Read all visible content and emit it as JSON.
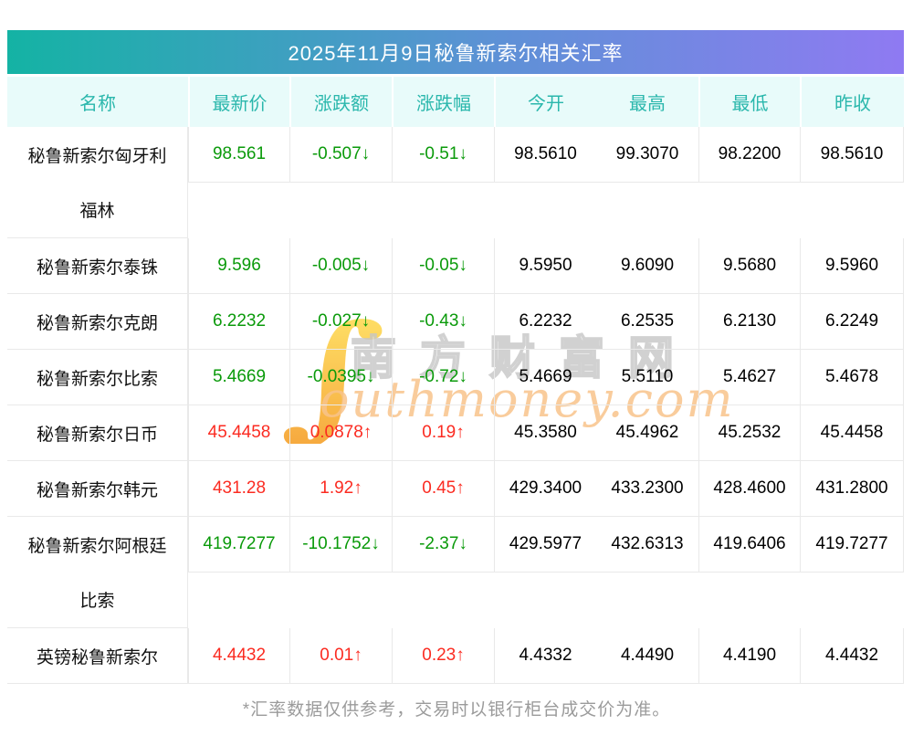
{
  "page_title_bar": {
    "title": "2025年11月9日秘鲁新索尔相关汇率"
  },
  "table": {
    "columns": [
      "名称",
      "最新价",
      "涨跌额",
      "涨跌幅",
      "今开",
      "最高",
      "最低",
      "昨收"
    ],
    "rows": [
      {
        "name": "秘鲁新索尔匈牙利福林",
        "name_lines": [
          "秘鲁新索尔匈牙利",
          "福林"
        ],
        "latest": "98.561",
        "change": "-0.507↓",
        "change_pct": "-0.51↓",
        "open": "98.5610",
        "high": "99.3070",
        "low": "98.2200",
        "prev_close": "98.5610",
        "trend": "down"
      },
      {
        "name": "秘鲁新索尔泰铢",
        "latest": "9.596",
        "change": "-0.005↓",
        "change_pct": "-0.05↓",
        "open": "9.5950",
        "high": "9.6090",
        "low": "9.5680",
        "prev_close": "9.5960",
        "trend": "down"
      },
      {
        "name": "秘鲁新索尔克朗",
        "latest": "6.2232",
        "change": "-0.027↓",
        "change_pct": "-0.43↓",
        "open": "6.2232",
        "high": "6.2535",
        "low": "6.2130",
        "prev_close": "6.2249",
        "trend": "down"
      },
      {
        "name": "秘鲁新索尔比索",
        "latest": "5.4669",
        "change": "-0.0395↓",
        "change_pct": "-0.72↓",
        "open": "5.4669",
        "high": "5.5110",
        "low": "5.4627",
        "prev_close": "5.4678",
        "trend": "down"
      },
      {
        "name": "秘鲁新索尔日币",
        "latest": "45.4458",
        "change": "0.0878↑",
        "change_pct": "0.19↑",
        "open": "45.3580",
        "high": "45.4962",
        "low": "45.2532",
        "prev_close": "45.4458",
        "trend": "up"
      },
      {
        "name": "秘鲁新索尔韩元",
        "latest": "431.28",
        "change": "1.92↑",
        "change_pct": "0.45↑",
        "open": "429.3400",
        "high": "433.2300",
        "low": "428.4600",
        "prev_close": "431.2800",
        "trend": "up"
      },
      {
        "name": "秘鲁新索尔阿根廷比索",
        "name_lines": [
          "秘鲁新索尔阿根廷",
          "比索"
        ],
        "latest": "419.7277",
        "change": "-10.1752↓",
        "change_pct": "-2.37↓",
        "open": "429.5977",
        "high": "432.6313",
        "low": "419.6406",
        "prev_close": "419.7277",
        "trend": "down"
      },
      {
        "name": "英镑秘鲁新索尔",
        "latest": "4.4432",
        "change": "0.01↑",
        "change_pct": "0.23↑",
        "open": "4.4332",
        "high": "4.4490",
        "low": "4.4190",
        "prev_close": "4.4432",
        "trend": "up"
      }
    ]
  },
  "watermark": {
    "swoosh_glyph": "∫",
    "cn_text": "南方财富网",
    "en_text": "outhmoney.com"
  },
  "footer_note": "*汇率数据仅供参考，交易时以银行柜台成交价为准。",
  "colors": {
    "up_red": "#fb2b21",
    "down_green": "#0a9a0a",
    "header_text_teal": "#2ab7ac",
    "header_bg": "#e8fbfa",
    "title_gradient_left": "#14b3a4",
    "title_gradient_mid": "#5e91d6",
    "title_gradient_right": "#8f7af2",
    "table_border": "#e9e9e9",
    "watermark_orange": "#f8c48b",
    "watermark_gray": "#c6c6c6",
    "footer_gray": "#9b9b9b"
  }
}
